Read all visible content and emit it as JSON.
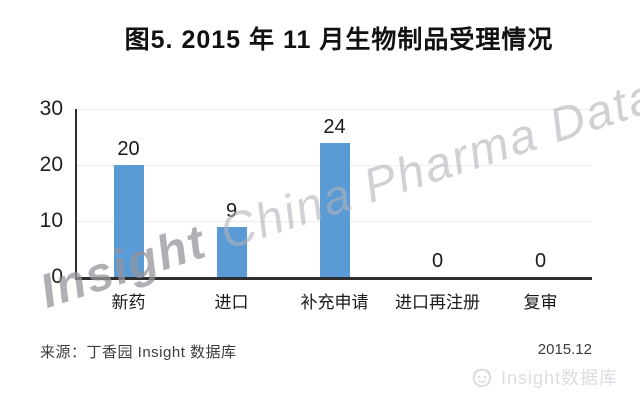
{
  "title": "图5. 2015 年 11 月生物制品受理情况",
  "chart_data": {
    "type": "bar",
    "title": "图5. 2015 年 11 月生物制品受理情况",
    "categories": [
      "新药",
      "进口",
      "补充申请",
      "进口再注册",
      "复审"
    ],
    "values": [
      20,
      9,
      24,
      0,
      0
    ],
    "value_labels": [
      "20",
      "9",
      "24",
      "0",
      "0"
    ],
    "xlabel": "",
    "ylabel": "",
    "ylim": [
      0,
      30
    ],
    "yticks": [
      0,
      10,
      20,
      30
    ],
    "grid": true,
    "legend": false,
    "bar_color": "#5B9BD5"
  },
  "watermark": {
    "part1": "Insight",
    "part2": "China Pharma Data"
  },
  "footer": {
    "source": "来源：丁香园 Insight 数据库",
    "date": "2015.12",
    "brand": "Insight数据库",
    "brand_icon": "insight-logo-icon"
  }
}
